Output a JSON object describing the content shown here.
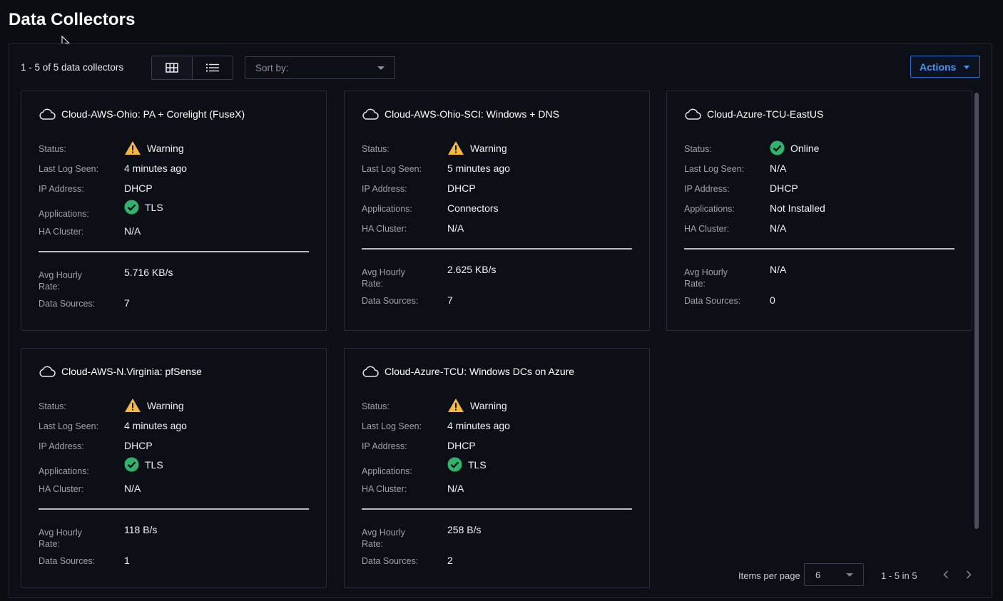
{
  "page": {
    "title": "Data Collectors"
  },
  "toolbar": {
    "count_label": "1 - 5 of 5 data collectors",
    "view_grid_icon": "grid-view-icon",
    "view_list_icon": "list-view-icon",
    "sort_placeholder": "Sort by:",
    "actions_label": "Actions"
  },
  "labels": {
    "status": "Status:",
    "last_log": "Last Log Seen:",
    "ip": "IP Address:",
    "applications": "Applications:",
    "ha_cluster": "HA Cluster:",
    "avg_rate_line1": "Avg Hourly",
    "avg_rate_line2": "Rate:",
    "data_sources": "Data Sources:"
  },
  "cards": [
    {
      "name": "Cloud-AWS-Ohio: PA + Corelight (FuseX)",
      "status": "Warning",
      "status_icon": "warning-icon",
      "last_log": "4 minutes ago",
      "ip": "DHCP",
      "applications": "TLS",
      "applications_icon": "check-circle-icon",
      "ha_cluster": "N/A",
      "avg_rate": "5.716 KB/s",
      "data_sources": "7"
    },
    {
      "name": "Cloud-AWS-Ohio-SCI: Windows + DNS",
      "status": "Warning",
      "status_icon": "warning-icon",
      "last_log": "5 minutes ago",
      "ip": "DHCP",
      "applications": "Connectors",
      "applications_icon": "",
      "ha_cluster": "N/A",
      "avg_rate": "2.625 KB/s",
      "data_sources": "7"
    },
    {
      "name": "Cloud-Azure-TCU-EastUS",
      "status": "Online",
      "status_icon": "check-circle-icon",
      "last_log": "N/A",
      "ip": "DHCP",
      "applications": "Not Installed",
      "applications_icon": "",
      "ha_cluster": "N/A",
      "avg_rate": "N/A",
      "data_sources": "0"
    },
    {
      "name": "Cloud-AWS-N.Virginia: pfSense",
      "status": "Warning",
      "status_icon": "warning-icon",
      "last_log": "4 minutes ago",
      "ip": "DHCP",
      "applications": "TLS",
      "applications_icon": "check-circle-icon",
      "ha_cluster": "N/A",
      "avg_rate": "118 B/s",
      "data_sources": "1"
    },
    {
      "name": "Cloud-Azure-TCU: Windows DCs on Azure",
      "status": "Warning",
      "status_icon": "warning-icon",
      "last_log": "4 minutes ago",
      "ip": "DHCP",
      "applications": "TLS",
      "applications_icon": "check-circle-icon",
      "ha_cluster": "N/A",
      "avg_rate": "258 B/s",
      "data_sources": "2"
    }
  ],
  "pagination": {
    "items_per_page_label": "Items per page",
    "items_per_page_value": "6",
    "range_label": "1 - 5 in 5"
  },
  "colors": {
    "background": "#0b0d13",
    "accent": "#4d95f0",
    "warning": "#f5b93e",
    "success": "#2fb36d"
  }
}
